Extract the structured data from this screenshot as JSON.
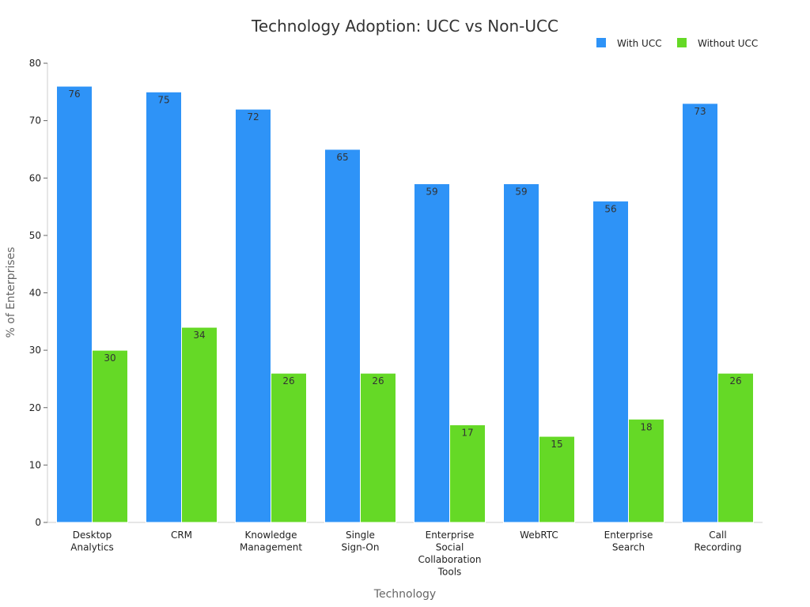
{
  "chart_data": {
    "type": "bar",
    "title": "Technology Adoption: UCC vs Non-UCC",
    "xlabel": "Technology",
    "ylabel": "% of Enterprises",
    "ylim": [
      0,
      80
    ],
    "yticks": [
      0,
      10,
      20,
      30,
      40,
      50,
      60,
      70,
      80
    ],
    "grid": false,
    "legend_position": "top-right",
    "categories": [
      [
        "Desktop",
        "Analytics"
      ],
      [
        "CRM"
      ],
      [
        "Knowledge",
        "Management"
      ],
      [
        "Single",
        "Sign-On"
      ],
      [
        "Enterprise",
        "Social",
        "Collaboration",
        "Tools"
      ],
      [
        "WebRTC"
      ],
      [
        "Enterprise",
        "Search"
      ],
      [
        "Call",
        "Recording"
      ]
    ],
    "series": [
      {
        "name": "With UCC",
        "color": "#2e93f7",
        "values": [
          76,
          75,
          72,
          65,
          59,
          59,
          56,
          73
        ]
      },
      {
        "name": "Without UCC",
        "color": "#65d926",
        "values": [
          30,
          34,
          26,
          26,
          17,
          15,
          18,
          26
        ]
      }
    ]
  }
}
